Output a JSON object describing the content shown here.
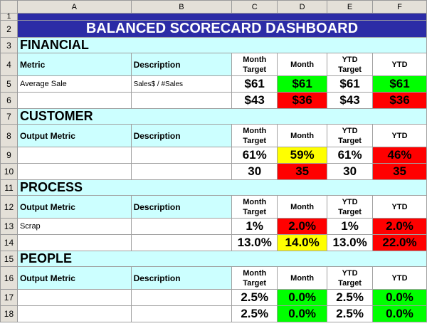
{
  "columns": [
    "A",
    "B",
    "C",
    "D",
    "E",
    "F"
  ],
  "row_numbers": [
    "1",
    "2",
    "3",
    "4",
    "5",
    "6",
    "7",
    "8",
    "9",
    "10",
    "11",
    "12",
    "13",
    "14",
    "15",
    "16",
    "17",
    "18"
  ],
  "title": "BALANCED SCORECARD DASHBOARD",
  "headers": {
    "metric": "Metric",
    "output_metric": "Output Metric",
    "description": "Description",
    "month_target": "Month Target",
    "month": "Month",
    "ytd_target": "YTD Target",
    "ytd": "YTD"
  },
  "sections": {
    "financial": {
      "name": "FINANCIAL",
      "rows": [
        {
          "metric": "Average Sale",
          "description": "Sales$ / #Sales",
          "month_target": "$61",
          "month": "$61",
          "ytd_target": "$61",
          "ytd": "$61",
          "month_status": "green",
          "ytd_status": "green"
        },
        {
          "metric": "",
          "description": "",
          "month_target": "$43",
          "month": "$36",
          "ytd_target": "$43",
          "ytd": "$36",
          "month_status": "red",
          "ytd_status": "red"
        }
      ]
    },
    "customer": {
      "name": "CUSTOMER",
      "rows": [
        {
          "metric": "",
          "description": "",
          "month_target": "61%",
          "month": "59%",
          "ytd_target": "61%",
          "ytd": "46%",
          "month_status": "yellow",
          "ytd_status": "red"
        },
        {
          "metric": "",
          "description": "",
          "month_target": "30",
          "month": "35",
          "ytd_target": "30",
          "ytd": "35",
          "month_status": "red",
          "ytd_status": "red"
        }
      ]
    },
    "process": {
      "name": "PROCESS",
      "rows": [
        {
          "metric": "Scrap",
          "description": "",
          "month_target": "1%",
          "month": "2.0%",
          "ytd_target": "1%",
          "ytd": "2.0%",
          "month_status": "red",
          "ytd_status": "red"
        },
        {
          "metric": "",
          "description": "",
          "month_target": "13.0%",
          "month": "14.0%",
          "ytd_target": "13.0%",
          "ytd": "22.0%",
          "month_status": "yellow",
          "ytd_status": "red"
        }
      ]
    },
    "people": {
      "name": "PEOPLE",
      "rows": [
        {
          "metric": "",
          "description": "",
          "month_target": "2.5%",
          "month": "0.0%",
          "ytd_target": "2.5%",
          "ytd": "0.0%",
          "month_status": "green",
          "ytd_status": "green"
        },
        {
          "metric": "",
          "description": "",
          "month_target": "2.5%",
          "month": "0.0%",
          "ytd_target": "2.5%",
          "ytd": "0.0%",
          "month_status": "green",
          "ytd_status": "green"
        }
      ]
    }
  },
  "colors": {
    "title_bg": "#2c2ca6",
    "section_bg": "#ccffff",
    "green": "#00ff00",
    "red": "#ff0000",
    "yellow": "#ffff00",
    "header_gray": "#e4e0d8"
  }
}
